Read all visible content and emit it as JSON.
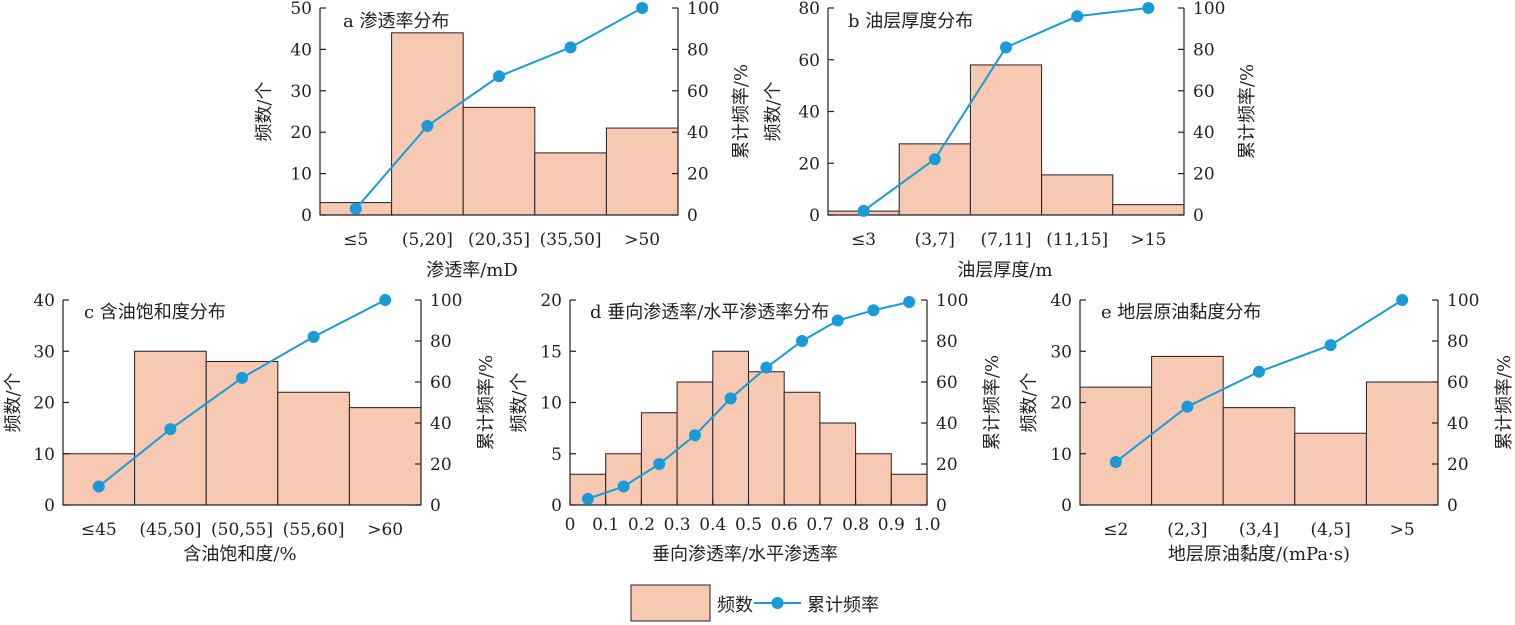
{
  "legend": {
    "bar_label": "频数",
    "line_label": "累计频率"
  },
  "colors": {
    "bar_fill": "#f7c9b3",
    "bar_stroke": "#231f20",
    "line": "#1a9bd7",
    "axis": "#231f20"
  },
  "chart_data": [
    {
      "type": "bar",
      "title": "a 渗透率分布",
      "xlabel": "渗透率/mD",
      "ylabel": "频数/个",
      "y2label": "累计频率/%",
      "categories": [
        "≤5",
        "(5,20]",
        "(20,35]",
        "(35,50]",
        ">50"
      ],
      "ylim": [
        0,
        50
      ],
      "yticks": [
        0,
        10,
        20,
        30,
        40,
        50
      ],
      "y2lim": [
        0,
        100
      ],
      "y2ticks": [
        0,
        20,
        40,
        60,
        80,
        100
      ],
      "series": [
        {
          "name": "频数",
          "values": [
            3,
            44,
            26,
            15,
            21
          ]
        },
        {
          "name": "累计频率",
          "values": [
            3,
            43,
            67,
            81,
            100
          ]
        }
      ]
    },
    {
      "type": "bar",
      "title": "b 油层厚度分布",
      "xlabel": "油层厚度/m",
      "ylabel": "频数/个",
      "y2label": "累计频率/%",
      "categories": [
        "≤3",
        "(3,7]",
        "(7,11]",
        "(11,15]",
        ">15"
      ],
      "ylim": [
        0,
        80
      ],
      "yticks": [
        0,
        20,
        40,
        60,
        80
      ],
      "y2lim": [
        0,
        100
      ],
      "y2ticks": [
        0,
        20,
        40,
        60,
        80,
        100
      ],
      "series": [
        {
          "name": "频数",
          "values": [
            1.5,
            27.5,
            58,
            15.5,
            4
          ]
        },
        {
          "name": "累计频率",
          "values": [
            2,
            27,
            81,
            96,
            100
          ]
        }
      ]
    },
    {
      "type": "bar",
      "title": "c 含油饱和度分布",
      "xlabel": "含油饱和度/%",
      "ylabel": "频数/个",
      "y2label": "累计频率/%",
      "categories": [
        "≤45",
        "(45,50]",
        "(50,55]",
        "(55,60]",
        ">60"
      ],
      "ylim": [
        0,
        40
      ],
      "yticks": [
        0,
        10,
        20,
        30,
        40
      ],
      "y2lim": [
        0,
        100
      ],
      "y2ticks": [
        0,
        20,
        40,
        60,
        80,
        100
      ],
      "series": [
        {
          "name": "频数",
          "values": [
            10,
            30,
            28,
            22,
            19
          ]
        },
        {
          "name": "累计频率",
          "values": [
            9,
            37,
            62,
            82,
            100
          ]
        }
      ]
    },
    {
      "type": "bar",
      "title": "d 垂向渗透率/水平渗透率分布",
      "xlabel": "垂向渗透率/水平渗透率",
      "ylabel": "频数/个",
      "y2label": "累计频率/%",
      "x_edges": [
        0,
        0.1,
        0.2,
        0.3,
        0.4,
        0.5,
        0.6,
        0.7,
        0.8,
        0.9,
        1.0
      ],
      "xticks": [
        "0",
        "0.1",
        "0.2",
        "0.3",
        "0.4",
        "0.5",
        "0.6",
        "0.7",
        "0.8",
        "0.9",
        "1.0"
      ],
      "xlim": [
        0,
        1.0
      ],
      "ylim": [
        0,
        20
      ],
      "yticks": [
        0,
        5,
        10,
        15,
        20
      ],
      "y2lim": [
        0,
        100
      ],
      "y2ticks": [
        0,
        20,
        40,
        60,
        80,
        100
      ],
      "series": [
        {
          "name": "频数",
          "values": [
            3,
            5,
            9,
            12,
            15,
            13,
            11,
            8,
            5,
            3
          ]
        },
        {
          "name": "累计频率",
          "values": [
            3,
            9,
            20,
            34,
            52,
            67,
            80,
            90,
            95,
            99
          ]
        }
      ]
    },
    {
      "type": "bar",
      "title": "e 地层原油黏度分布",
      "xlabel": "地层原油黏度/(mPa·s)",
      "ylabel": "频数/个",
      "y2label": "累计频率/%",
      "categories": [
        "≤2",
        "(2,3]",
        "(3,4]",
        "(4,5]",
        ">5"
      ],
      "ylim": [
        0,
        40
      ],
      "yticks": [
        0,
        10,
        20,
        30,
        40
      ],
      "y2lim": [
        0,
        100
      ],
      "y2ticks": [
        0,
        20,
        40,
        60,
        80,
        100
      ],
      "series": [
        {
          "name": "频数",
          "values": [
            23,
            29,
            19,
            14,
            24
          ]
        },
        {
          "name": "累计频率",
          "values": [
            21,
            48,
            65,
            78,
            100
          ]
        }
      ]
    }
  ]
}
